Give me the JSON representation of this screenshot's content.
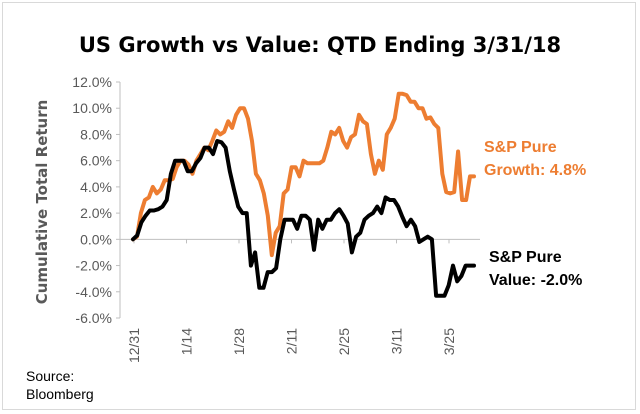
{
  "chart_data": {
    "type": "line",
    "title": "US Growth vs Value: QTD Ending 3/31/18",
    "ylabel": "Cumulative Total Return",
    "xlabel": "",
    "ylim": [
      -6,
      12
    ],
    "yticks": [
      -6,
      -4,
      -2,
      0,
      2,
      4,
      6,
      8,
      10,
      12
    ],
    "ytick_labels": [
      "-6.0%",
      "-4.0%",
      "-2.0%",
      "0.0%",
      "2.0%",
      "4.0%",
      "6.0%",
      "8.0%",
      "10.0%",
      "12.0%"
    ],
    "xtick_labels": [
      "12/31",
      "1/14",
      "1/28",
      "2/11",
      "2/25",
      "3/11",
      "3/25"
    ],
    "grid": false,
    "source": "Source: Bloomberg",
    "series": [
      {
        "name": "S&P Pure Growth",
        "color": "#ED7D31",
        "annotation": [
          "S&P Pure",
          "Growth: 4.8%"
        ],
        "values": [
          0.0,
          0.2,
          2.0,
          3.0,
          3.2,
          4.0,
          3.5,
          3.8,
          4.5,
          4.5,
          4.6,
          5.5,
          6.0,
          6.0,
          5.7,
          5.0,
          6.0,
          6.5,
          7.0,
          6.8,
          7.5,
          8.3,
          8.0,
          8.2,
          9.0,
          8.5,
          9.5,
          10.0,
          10.0,
          9.2,
          7.5,
          5.0,
          4.5,
          3.5,
          1.8,
          -1.2,
          0.5,
          1.0,
          3.5,
          3.8,
          5.5,
          5.5,
          4.8,
          6.0,
          5.8,
          5.8,
          5.8,
          5.8,
          6.0,
          7.0,
          8.2,
          8.0,
          8.5,
          7.5,
          7.0,
          7.8,
          8.0,
          9.5,
          9.0,
          8.8,
          6.5,
          5.0,
          6.0,
          5.3,
          8.0,
          8.5,
          9.2,
          11.1,
          11.1,
          11.0,
          10.5,
          10.5,
          10.0,
          10.0,
          9.2,
          9.3,
          8.8,
          8.5,
          5.0,
          3.6,
          3.5,
          3.6,
          6.7,
          3.0,
          3.0,
          4.8,
          4.8
        ],
        "x_start": 0,
        "x_step": 1
      },
      {
        "name": "S&P Pure Value",
        "color": "#000000",
        "annotation": [
          "S&P Pure",
          "Value: -2.0%"
        ],
        "values": [
          0.0,
          0.3,
          1.3,
          1.8,
          2.2,
          2.2,
          2.3,
          2.5,
          3.0,
          5.0,
          6.0,
          6.0,
          6.0,
          5.2,
          5.2,
          5.8,
          6.2,
          7.0,
          7.0,
          6.5,
          7.5,
          7.4,
          7.0,
          5.2,
          3.8,
          2.5,
          2.0,
          2.0,
          -2.0,
          -1.0,
          -3.7,
          -3.7,
          -2.5,
          -2.5,
          -2.2,
          0.0,
          1.5,
          1.5,
          1.5,
          0.8,
          1.8,
          1.8,
          1.5,
          -0.8,
          1.5,
          0.8,
          1.5,
          1.5,
          2.0,
          2.3,
          1.8,
          1.2,
          -1.0,
          0.2,
          0.5,
          1.5,
          1.8,
          2.0,
          2.5,
          2.0,
          3.2,
          3.0,
          3.0,
          2.5,
          1.7,
          1.0,
          1.5,
          1.0,
          -0.2,
          0.0,
          0.2,
          0.0,
          -4.3,
          -4.3,
          -4.3,
          -3.5,
          -2.0,
          -3.2,
          -2.8,
          -2.0,
          -2.0,
          -2.0
        ],
        "x_start": 0,
        "x_step": 1
      }
    ]
  }
}
